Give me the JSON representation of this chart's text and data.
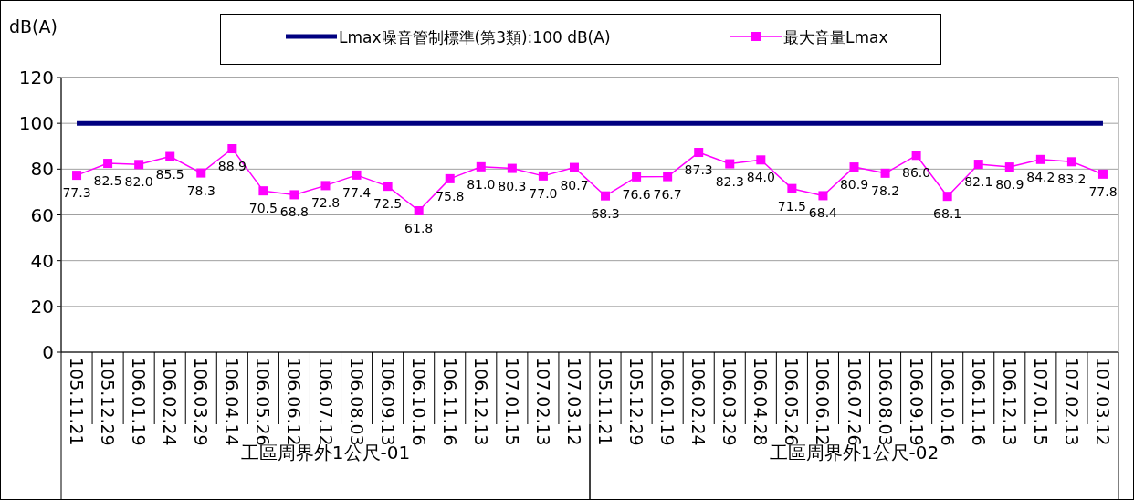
{
  "chart_data": {
    "type": "line",
    "ylabel": "dB(A)",
    "ylim": [
      0,
      120
    ],
    "yticks": [
      0,
      20,
      40,
      60,
      80,
      100,
      120
    ],
    "grid": "y",
    "legend": "top",
    "categories": [
      "105.11.21",
      "105.12.29",
      "106.01.19",
      "106.02.24",
      "106.03.29",
      "106.04.14",
      "106.05.26",
      "106.06.12",
      "106.07.12",
      "106.08.03",
      "106.09.13",
      "106.10.16",
      "106.11.16",
      "106.12.13",
      "107.01.15",
      "107.02.13",
      "107.03.12",
      "105.11.21",
      "105.12.29",
      "106.01.19",
      "106.02.24",
      "106.03.29",
      "106.04.28",
      "106.05.26",
      "106.06.12",
      "106.07.26",
      "106.08.03",
      "106.09.19",
      "106.10.16",
      "106.11.16",
      "106.12.13",
      "107.01.15",
      "107.02.13",
      "107.03.12"
    ],
    "annotations": [
      "工區周界外1公尺-01",
      "工區周界外1公尺-02"
    ],
    "series": [
      {
        "name": "Lmax噪音管制標準(第3類):100 dB(A)",
        "color": "#000080",
        "marker": "none",
        "values": [
          100,
          100,
          100,
          100,
          100,
          100,
          100,
          100,
          100,
          100,
          100,
          100,
          100,
          100,
          100,
          100,
          100,
          100,
          100,
          100,
          100,
          100,
          100,
          100,
          100,
          100,
          100,
          100,
          100,
          100,
          100,
          100,
          100,
          100
        ]
      },
      {
        "name": "最大音量Lmax",
        "color": "#ff00ff",
        "marker": "square",
        "values": [
          77.3,
          82.5,
          82.0,
          85.5,
          78.3,
          88.9,
          70.5,
          68.8,
          72.8,
          77.4,
          72.5,
          61.8,
          75.8,
          81.0,
          80.3,
          77.0,
          80.7,
          68.3,
          76.6,
          76.7,
          87.3,
          82.3,
          84.0,
          71.5,
          68.4,
          80.9,
          78.2,
          86.0,
          68.1,
          82.1,
          80.9,
          84.2,
          83.2,
          77.8
        ],
        "value_labels": [
          "77.3",
          "82.5",
          "82.0",
          "85.5",
          "78.3",
          "88.9",
          "70.5",
          "68.8",
          "72.8",
          "77.4",
          "72.5",
          "61.8",
          "75.8",
          "81.0",
          "80.3",
          "77.0",
          "80.7",
          "68.3",
          "76.6",
          "76.7",
          "87.3",
          "82.3",
          "84.0",
          "71.5",
          "68.4",
          "80.9",
          "78.2",
          "86.0",
          "68.1",
          "82.1",
          "80.9",
          "84.2",
          "83.2",
          "77.8"
        ]
      }
    ]
  }
}
